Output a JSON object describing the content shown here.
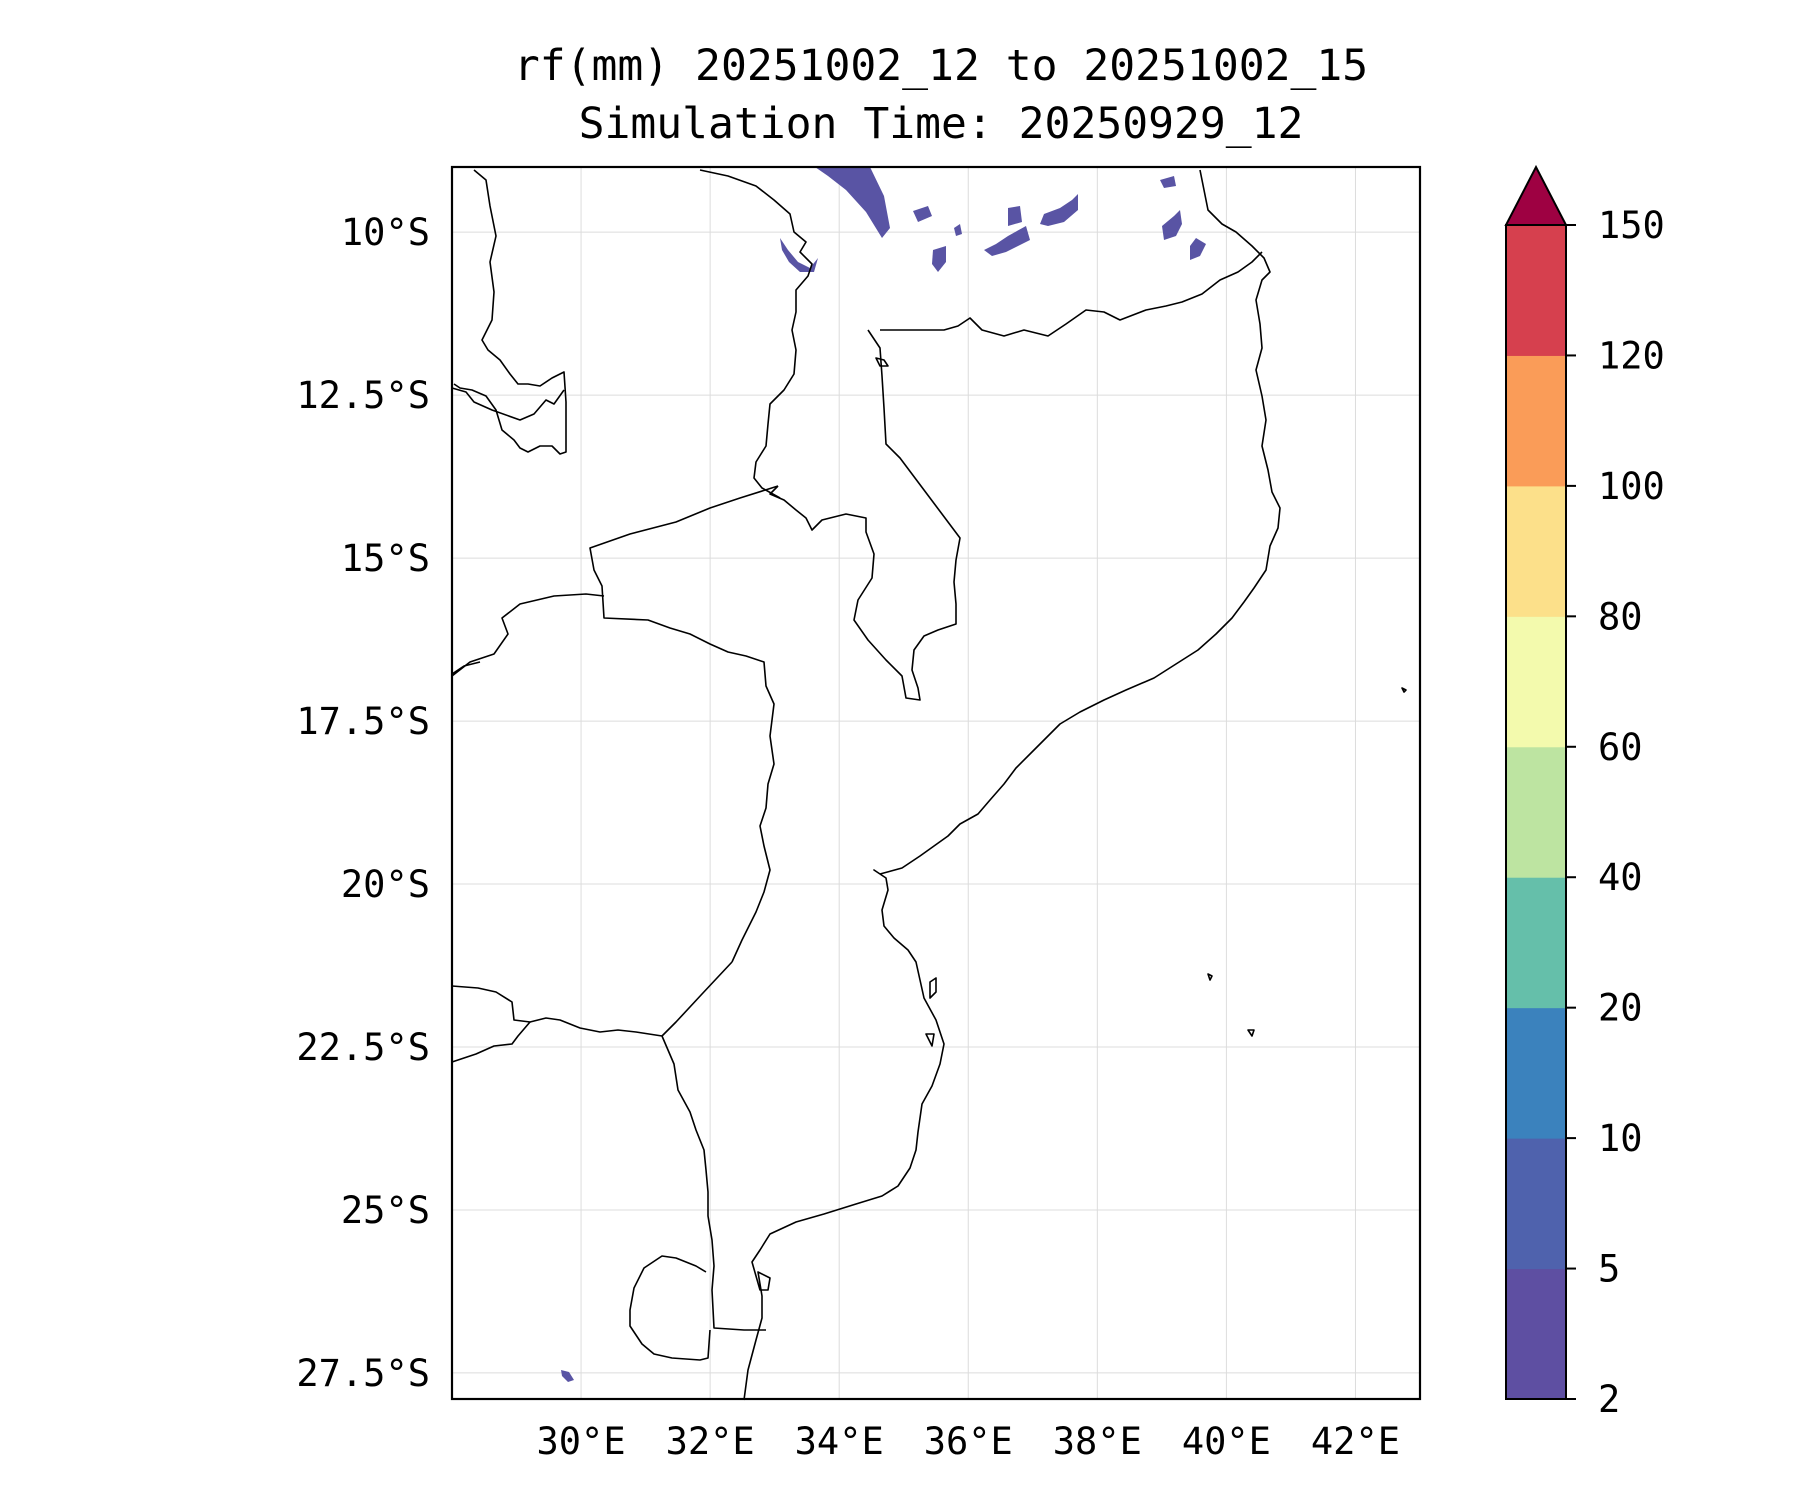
{
  "title_line1": "rf(mm) 20251002_12 to 20251002_15",
  "title_line2": "Simulation Time: 20250929_12",
  "map": {
    "lon_range": [
      28.0,
      43.0
    ],
    "lat_range": [
      -9.0,
      -27.9
    ],
    "lat_ticks": [
      {
        "value": -10.0,
        "label": "10°S"
      },
      {
        "value": -12.5,
        "label": "12.5°S"
      },
      {
        "value": -15.0,
        "label": "15°S"
      },
      {
        "value": -17.5,
        "label": "17.5°S"
      },
      {
        "value": -20.0,
        "label": "20°S"
      },
      {
        "value": -22.5,
        "label": "22.5°S"
      },
      {
        "value": -25.0,
        "label": "25°S"
      },
      {
        "value": -27.5,
        "label": "27.5°S"
      }
    ],
    "lon_ticks": [
      {
        "value": 30,
        "label": "30°E"
      },
      {
        "value": 32,
        "label": "32°E"
      },
      {
        "value": 34,
        "label": "34°E"
      },
      {
        "value": 36,
        "label": "36°E"
      },
      {
        "value": 38,
        "label": "38°E"
      },
      {
        "value": 40,
        "label": "40°E"
      },
      {
        "value": 42,
        "label": "42°E"
      }
    ],
    "gridlines": true,
    "rain_color": "#5954a4"
  },
  "colorbar": {
    "extend": "max",
    "extend_color": "#9e0142",
    "levels": [
      "2",
      "5",
      "10",
      "20",
      "40",
      "60",
      "80",
      "100",
      "120",
      "150"
    ],
    "colors": [
      "#5e4fa2",
      "#4f62ad",
      "#3b82bd",
      "#65bfaa",
      "#bde4a1",
      "#f3faad",
      "#fce08a",
      "#fa9c58",
      "#d6404e"
    ]
  }
}
